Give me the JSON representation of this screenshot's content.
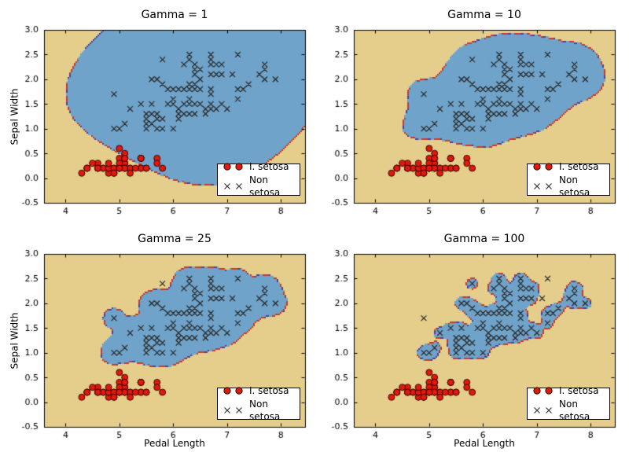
{
  "chart_data": {
    "type": "scatter",
    "description": "SVM RBF decision regions on iris data for four gamma values",
    "figure_bg": "#ffffff",
    "xlabel": "Pedal Length",
    "ylabel": "Sepal Width",
    "xlim": [
      3.6,
      8.45
    ],
    "ylim": [
      -0.5,
      3.0
    ],
    "xtick_values": [
      4,
      5,
      6,
      7,
      8
    ],
    "xtick_labels": [
      "4",
      "5",
      "6",
      "7",
      "8"
    ],
    "ytick_values": [
      3.0,
      2.5,
      2.0,
      1.5,
      1.0,
      0.5,
      0.0,
      -0.5
    ],
    "ytick_labels": [
      "3.0",
      "2.5",
      "2.0",
      "1.5",
      "1.0",
      "0.5",
      "0.0",
      "-0.5"
    ],
    "subplots": [
      {
        "title": "Gamma = 1",
        "gamma": 1
      },
      {
        "title": "Gamma = 10",
        "gamma": 10
      },
      {
        "title": "Gamma = 25",
        "gamma": 25
      },
      {
        "title": "Gamma = 100",
        "gamma": 100
      }
    ],
    "legend": {
      "setosa_label": "I. setosa",
      "nonsetosa_label": "Non setosa"
    },
    "colors": {
      "region_negative": "#e5ce8b",
      "region_positive": "#6fa3c9",
      "setosa_marker": "#e2190d",
      "setosa_marker_edge": "#2a0000",
      "nonsetosa_marker": "#262626",
      "boundary_dash_red": "#c43c2e",
      "boundary_dash_purple": "#503f98",
      "frame": "#000000",
      "text": "#000000",
      "legend_bg": "#ffffff"
    },
    "series": [
      {
        "name": "I. setosa",
        "marker": "circle",
        "points": [
          [
            5.1,
            0.2
          ],
          [
            4.9,
            0.2
          ],
          [
            4.7,
            0.2
          ],
          [
            4.6,
            0.2
          ],
          [
            5.0,
            0.2
          ],
          [
            5.4,
            0.4
          ],
          [
            4.6,
            0.3
          ],
          [
            5.0,
            0.2
          ],
          [
            4.4,
            0.2
          ],
          [
            4.9,
            0.1
          ],
          [
            5.4,
            0.2
          ],
          [
            4.8,
            0.2
          ],
          [
            4.8,
            0.1
          ],
          [
            4.3,
            0.1
          ],
          [
            5.8,
            0.2
          ],
          [
            5.7,
            0.4
          ],
          [
            5.4,
            0.4
          ],
          [
            5.1,
            0.3
          ],
          [
            5.7,
            0.3
          ],
          [
            5.1,
            0.3
          ],
          [
            5.4,
            0.2
          ],
          [
            5.1,
            0.4
          ],
          [
            4.6,
            0.2
          ],
          [
            5.1,
            0.5
          ],
          [
            4.8,
            0.2
          ],
          [
            5.0,
            0.2
          ],
          [
            5.0,
            0.4
          ],
          [
            5.2,
            0.2
          ],
          [
            5.2,
            0.2
          ],
          [
            4.7,
            0.2
          ],
          [
            4.8,
            0.2
          ],
          [
            5.4,
            0.4
          ],
          [
            5.2,
            0.1
          ],
          [
            5.5,
            0.2
          ],
          [
            4.9,
            0.2
          ],
          [
            5.0,
            0.2
          ],
          [
            5.5,
            0.2
          ],
          [
            4.9,
            0.1
          ],
          [
            4.4,
            0.2
          ],
          [
            5.1,
            0.2
          ],
          [
            5.0,
            0.3
          ],
          [
            4.5,
            0.3
          ],
          [
            4.4,
            0.2
          ],
          [
            5.0,
            0.6
          ],
          [
            5.1,
            0.4
          ],
          [
            4.8,
            0.3
          ],
          [
            5.1,
            0.2
          ],
          [
            4.6,
            0.2
          ],
          [
            5.3,
            0.2
          ],
          [
            5.0,
            0.2
          ]
        ]
      },
      {
        "name": "Non setosa",
        "marker": "x",
        "points": [
          [
            7.0,
            1.4
          ],
          [
            6.4,
            1.5
          ],
          [
            6.9,
            1.5
          ],
          [
            5.5,
            1.3
          ],
          [
            6.5,
            1.5
          ],
          [
            5.7,
            1.3
          ],
          [
            6.3,
            1.6
          ],
          [
            4.9,
            1.0
          ],
          [
            6.6,
            1.3
          ],
          [
            5.2,
            1.4
          ],
          [
            5.0,
            1.0
          ],
          [
            5.9,
            1.5
          ],
          [
            6.0,
            1.0
          ],
          [
            6.1,
            1.4
          ],
          [
            5.6,
            1.3
          ],
          [
            6.7,
            1.4
          ],
          [
            5.6,
            1.5
          ],
          [
            5.8,
            1.0
          ],
          [
            6.2,
            1.5
          ],
          [
            5.6,
            1.1
          ],
          [
            5.9,
            1.8
          ],
          [
            6.1,
            1.3
          ],
          [
            6.3,
            1.5
          ],
          [
            6.1,
            1.2
          ],
          [
            6.4,
            1.3
          ],
          [
            6.6,
            1.4
          ],
          [
            6.8,
            1.4
          ],
          [
            6.7,
            1.7
          ],
          [
            6.0,
            1.5
          ],
          [
            5.7,
            1.0
          ],
          [
            5.5,
            1.1
          ],
          [
            5.5,
            1.0
          ],
          [
            5.8,
            1.2
          ],
          [
            6.0,
            1.6
          ],
          [
            5.4,
            1.5
          ],
          [
            6.0,
            1.6
          ],
          [
            6.7,
            1.5
          ],
          [
            6.3,
            1.3
          ],
          [
            5.6,
            1.3
          ],
          [
            5.5,
            1.3
          ],
          [
            5.5,
            1.2
          ],
          [
            6.1,
            1.4
          ],
          [
            5.8,
            1.2
          ],
          [
            5.0,
            1.0
          ],
          [
            5.6,
            1.3
          ],
          [
            5.7,
            1.2
          ],
          [
            5.7,
            1.3
          ],
          [
            6.2,
            1.3
          ],
          [
            5.1,
            1.1
          ],
          [
            5.7,
            1.3
          ],
          [
            6.3,
            2.5
          ],
          [
            5.8,
            1.9
          ],
          [
            7.1,
            2.1
          ],
          [
            6.3,
            1.8
          ],
          [
            6.5,
            2.2
          ],
          [
            7.6,
            2.1
          ],
          [
            4.9,
            1.7
          ],
          [
            7.3,
            1.8
          ],
          [
            6.7,
            1.8
          ],
          [
            7.2,
            2.5
          ],
          [
            6.5,
            2.0
          ],
          [
            6.4,
            1.9
          ],
          [
            6.8,
            2.1
          ],
          [
            5.7,
            2.0
          ],
          [
            5.8,
            2.4
          ],
          [
            6.4,
            2.3
          ],
          [
            6.5,
            1.8
          ],
          [
            7.7,
            2.2
          ],
          [
            7.7,
            2.3
          ],
          [
            6.0,
            1.5
          ],
          [
            6.9,
            2.3
          ],
          [
            5.6,
            2.0
          ],
          [
            7.7,
            2.0
          ],
          [
            6.3,
            1.8
          ],
          [
            6.7,
            2.1
          ],
          [
            7.2,
            1.8
          ],
          [
            6.2,
            1.8
          ],
          [
            6.1,
            1.8
          ],
          [
            6.4,
            2.1
          ],
          [
            7.2,
            1.6
          ],
          [
            7.4,
            1.9
          ],
          [
            7.9,
            2.0
          ],
          [
            6.4,
            2.2
          ],
          [
            6.3,
            1.5
          ],
          [
            6.1,
            1.4
          ],
          [
            7.7,
            2.3
          ],
          [
            6.3,
            2.4
          ],
          [
            6.4,
            1.8
          ],
          [
            6.0,
            1.8
          ],
          [
            6.9,
            2.1
          ],
          [
            6.7,
            2.4
          ],
          [
            6.9,
            2.3
          ],
          [
            5.8,
            1.9
          ],
          [
            6.8,
            2.3
          ],
          [
            6.7,
            2.5
          ],
          [
            6.7,
            2.3
          ],
          [
            6.3,
            1.9
          ],
          [
            6.5,
            2.0
          ],
          [
            6.2,
            2.3
          ],
          [
            5.9,
            1.8
          ]
        ]
      }
    ]
  }
}
